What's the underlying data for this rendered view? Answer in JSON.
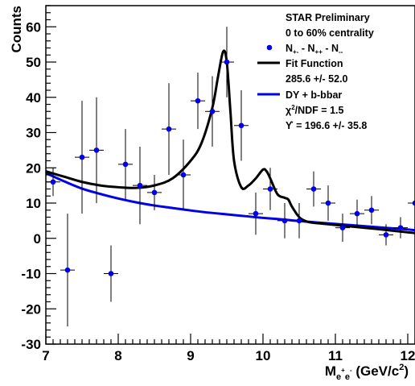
{
  "chart_data": {
    "type": "scatter",
    "ylabel": "Counts",
    "xlabel": {
      "base": "M",
      "sub_a": "e",
      "sup_a": "+",
      "sub_b": "e",
      "sup_b": "-",
      "unit_open": " (GeV/c",
      "unit_sup": "2",
      "unit_close": ")"
    },
    "xlim": [
      7,
      12.1
    ],
    "ylim": [
      -30,
      66
    ],
    "x_ticks": [
      "7",
      "8",
      "9",
      "10",
      "11",
      "12"
    ],
    "y_ticks": [
      "-30",
      "-20",
      "-10",
      "0",
      "10",
      "20",
      "30",
      "40",
      "50",
      "60"
    ],
    "legend": {
      "placement": "top-right",
      "header_1": "STAR Preliminary",
      "header_2": "0 to 60% centrality",
      "data_label": {
        "base": "N",
        "sub1": "+-",
        "mid1": " - N",
        "sub2": "++",
        "mid2": " - N",
        "sub3": "--"
      },
      "fit_label": "Fit Function",
      "fit_value": "285.6 +/- 52.0",
      "dy_label": "DY + b-bbar",
      "chi2": {
        "sym": "χ",
        "sup": "2",
        "rest": "/NDF = 1.5"
      },
      "upsilon": "ϒ = 196.6 +/- 35.8"
    },
    "colors": {
      "data": "#0000ee",
      "fit": "#000000",
      "background": "#0000ee"
    },
    "series": [
      {
        "name": "N+- - N++ - N--",
        "x": [
          7.1,
          7.3,
          7.5,
          7.7,
          7.9,
          8.1,
          8.3,
          8.5,
          8.7,
          8.9,
          9.1,
          9.3,
          9.5,
          9.7,
          9.9,
          10.1,
          10.3,
          10.5,
          10.7,
          10.9,
          11.1,
          11.3,
          11.5,
          11.7,
          11.9,
          12.1
        ],
        "y": [
          16,
          -9,
          23,
          25,
          -10,
          21,
          15,
          13,
          31,
          18,
          39,
          36,
          50,
          32,
          7,
          14,
          5,
          5,
          14,
          10,
          3,
          7,
          8,
          1,
          3,
          10
        ],
        "yerr": [
          4,
          16,
          16,
          15,
          8,
          10,
          11,
          5,
          13,
          10,
          8,
          10,
          10,
          10,
          6,
          6,
          5,
          5,
          5,
          5,
          4,
          4,
          4,
          3,
          3,
          3
        ]
      }
    ],
    "fit_curve": {
      "name": "Fit Function",
      "x": [
        7.0,
        7.25,
        7.5,
        7.75,
        8.0,
        8.25,
        8.5,
        8.75,
        9.0,
        9.15,
        9.3,
        9.38,
        9.45,
        9.5,
        9.55,
        9.6,
        9.7,
        9.8,
        9.9,
        10.0,
        10.05,
        10.1,
        10.2,
        10.3,
        10.35,
        10.4,
        10.5,
        10.6,
        10.7,
        10.8,
        11.0,
        11.3,
        11.6,
        12.0,
        12.1
      ],
      "y": [
        19,
        17.5,
        16,
        15,
        14.5,
        14.3,
        15,
        17,
        22,
        27,
        37,
        46,
        53,
        50,
        36,
        22,
        14.5,
        15,
        17,
        19.5,
        19,
        17,
        12.5,
        11.5,
        11,
        9,
        6,
        4.8,
        4.4,
        4.2,
        3.8,
        3.2,
        2.6,
        1.7,
        1.5
      ]
    },
    "background_curve": {
      "name": "DY + b-bbar",
      "x": [
        7.0,
        7.25,
        7.5,
        7.75,
        8.0,
        8.25,
        8.5,
        8.75,
        9.0,
        9.25,
        9.5,
        9.75,
        10.0,
        10.25,
        10.5,
        10.75,
        11.0,
        11.25,
        11.5,
        11.75,
        12.0,
        12.1
      ],
      "y": [
        18.5,
        16.2,
        14.1,
        12.6,
        11.3,
        10.2,
        9.3,
        8.6,
        7.9,
        7.3,
        6.8,
        6.3,
        5.8,
        5.4,
        4.9,
        4.5,
        4.1,
        3.7,
        3.3,
        2.9,
        2.5,
        2.3
      ]
    }
  }
}
